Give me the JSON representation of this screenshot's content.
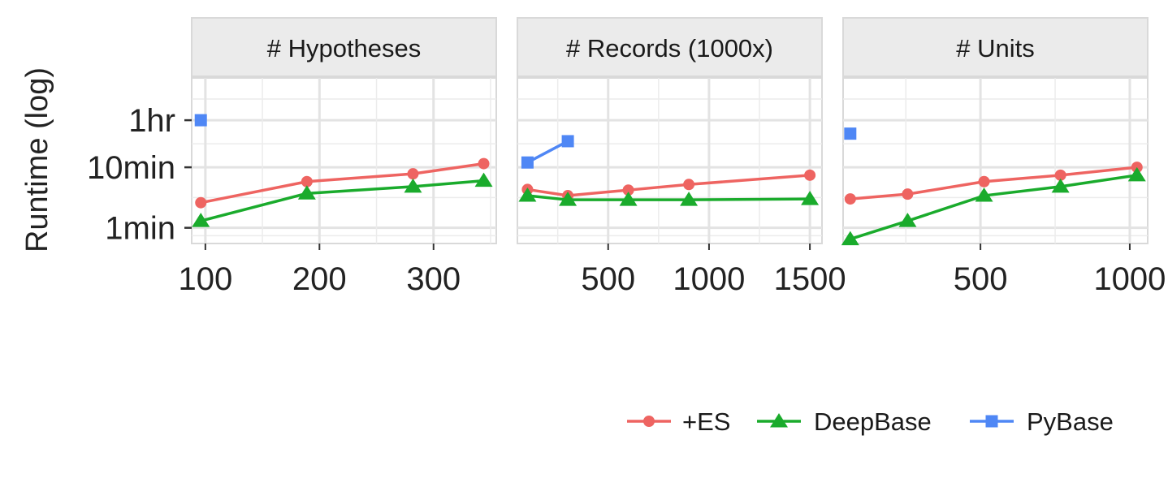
{
  "chart_data": {
    "type": "line",
    "ylabel": "Runtime (log)",
    "yscale": "log",
    "y_ticks": [
      {
        "label": "1min",
        "value": 1
      },
      {
        "label": "10min",
        "value": 10
      },
      {
        "label": "1hr",
        "value": 60
      }
    ],
    "ylim": [
      0.55,
      300
    ],
    "colors": {
      "+ES": "#ee6461",
      "DeepBase": "#1aab2c",
      "PyBase": "#4f87f5"
    },
    "panels": [
      {
        "title": "# Hypotheses",
        "xlim": [
          88,
          355
        ],
        "x_ticks": [
          100,
          200,
          300
        ],
        "x_tick_labels": [
          "100",
          "200",
          "300"
        ],
        "series": [
          {
            "name": "+ES",
            "marker": "circle",
            "x": [
              96,
              189,
              282,
              344
            ],
            "y": [
              2.6,
              5.8,
              7.8,
              11.5
            ]
          },
          {
            "name": "DeepBase",
            "marker": "triangle",
            "x": [
              96,
              189,
              282,
              344
            ],
            "y": [
              1.3,
              3.7,
              4.8,
              6.0
            ]
          },
          {
            "name": "PyBase",
            "marker": "square",
            "x": [
              96
            ],
            "y": [
              60
            ]
          }
        ]
      },
      {
        "title": "# Records (1000x)",
        "xlim": [
          50,
          1560
        ],
        "x_ticks": [
          500,
          1000,
          1500
        ],
        "x_tick_labels": [
          "500",
          "1000",
          "1500"
        ],
        "series": [
          {
            "name": "+ES",
            "marker": "circle",
            "x": [
              100,
              300,
              600,
              900,
              1500
            ],
            "y": [
              4.3,
              3.4,
              4.2,
              5.2,
              7.4
            ]
          },
          {
            "name": "DeepBase",
            "marker": "triangle",
            "x": [
              100,
              300,
              600,
              900,
              1500
            ],
            "y": [
              3.4,
              2.9,
              2.9,
              2.9,
              3.0
            ]
          },
          {
            "name": "PyBase",
            "marker": "square",
            "x": [
              100,
              300
            ],
            "y": [
              12,
              27
            ]
          }
        ]
      },
      {
        "title": "# Units",
        "xlim": [
          40,
          1060
        ],
        "x_ticks": [
          500,
          1000
        ],
        "x_tick_labels": [
          "500",
          "1000"
        ],
        "series": [
          {
            "name": "+ES",
            "marker": "circle",
            "x": [
              64,
              256,
              512,
              768,
              1024
            ],
            "y": [
              3.0,
              3.6,
              5.8,
              7.4,
              10.0
            ]
          },
          {
            "name": "DeepBase",
            "marker": "triangle",
            "x": [
              64,
              256,
              512,
              768,
              1024
            ],
            "y": [
              0.65,
              1.3,
              3.4,
              4.8,
              7.4
            ]
          },
          {
            "name": "PyBase",
            "marker": "square",
            "x": [
              64
            ],
            "y": [
              36
            ]
          }
        ]
      }
    ],
    "legend": {
      "position": "bottom-right",
      "entries": [
        {
          "name": "+ES",
          "marker": "circle"
        },
        {
          "name": "DeepBase",
          "marker": "triangle"
        },
        {
          "name": "PyBase",
          "marker": "square"
        }
      ]
    }
  }
}
